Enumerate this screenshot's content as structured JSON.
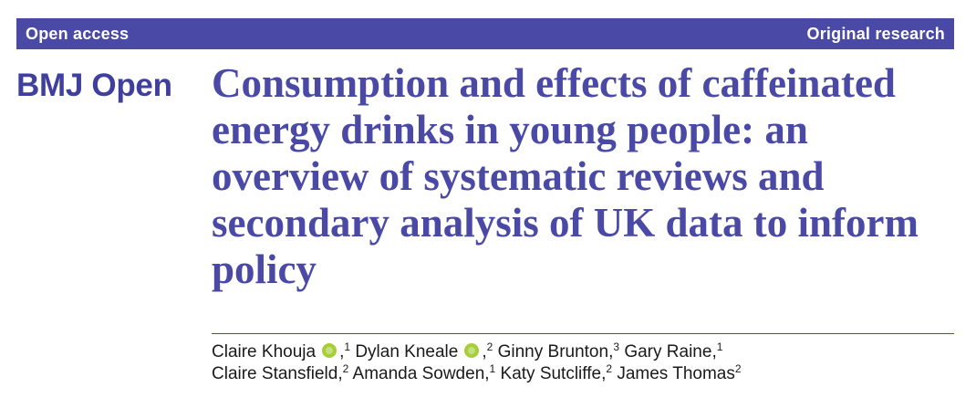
{
  "banner": {
    "left": "Open access",
    "right": "Original research",
    "color": "#4a4aa6"
  },
  "journal": {
    "name": "BMJ Open",
    "color": "#3f3f9e"
  },
  "article": {
    "title": "Consumption and effects of caffeinated energy drinks in young people: an overview of systematic reviews and secondary analysis of UK data to inform policy"
  },
  "authors": [
    {
      "name": "Claire Khouja",
      "orcid": true,
      "sup": "1"
    },
    {
      "name": "Dylan Kneale",
      "orcid": true,
      "sup": "2"
    },
    {
      "name": "Ginny Brunton",
      "orcid": false,
      "sup": "3"
    },
    {
      "name": "Gary Raine",
      "orcid": false,
      "sup": "1"
    },
    {
      "name": "Claire Stansfield",
      "orcid": false,
      "sup": "2"
    },
    {
      "name": "Amanda Sowden",
      "orcid": false,
      "sup": "1"
    },
    {
      "name": "Katy Sutcliffe",
      "orcid": false,
      "sup": "2"
    },
    {
      "name": "James Thomas",
      "orcid": false,
      "sup": "2"
    }
  ],
  "icons": {
    "orcid": "orcid-icon",
    "orcid_color": "#a6ce39"
  }
}
